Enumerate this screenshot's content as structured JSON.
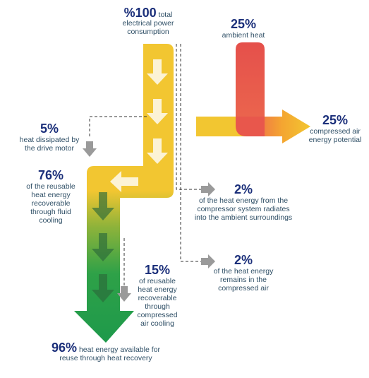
{
  "total": {
    "value": "%100",
    "text": "total electrical power consumption"
  },
  "ambient_heat": {
    "value": "25%",
    "text": "ambient heat"
  },
  "compressed_air_potential": {
    "value": "25%",
    "text": "compressed air energy potential"
  },
  "drive_motor": {
    "value": "5%",
    "text": "heat dissipated by the drive motor"
  },
  "fluid_cooling": {
    "value": "76%",
    "text": "of the reusable heat energy recoverable through fluid cooling"
  },
  "radiates": {
    "value": "2%",
    "text": "of the heat energy from the compressor system radiates into the ambient surroundings"
  },
  "remains": {
    "value": "2%",
    "text": "of the heat energy remains in the compressed air"
  },
  "air_cooling": {
    "value": "15%",
    "text": "of reusable heat energy recoverable through compressed air cooling"
  },
  "reuse": {
    "value": "96%",
    "text": "heat energy available for reuse through heat recovery"
  },
  "colors": {
    "yellow": "#f2c631",
    "orange": "#f4a531",
    "red": "#e5504b",
    "green": "#1f9a4b",
    "navy": "#1b2f7a",
    "gray": "#9a9a9a"
  }
}
